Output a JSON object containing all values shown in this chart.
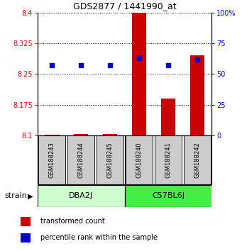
{
  "title": "GDS2877 / 1441990_at",
  "samples": [
    "GSM188243",
    "GSM188244",
    "GSM188245",
    "GSM188240",
    "GSM188241",
    "GSM188242"
  ],
  "transformed_counts": [
    8.102,
    8.103,
    8.104,
    8.4,
    8.19,
    8.295
  ],
  "percentile_ranks": [
    57,
    57,
    57,
    63,
    57,
    62
  ],
  "ylim_left": [
    8.1,
    8.4
  ],
  "ylim_right": [
    0,
    100
  ],
  "yticks_left": [
    8.1,
    8.175,
    8.25,
    8.325,
    8.4
  ],
  "yticks_right": [
    0,
    25,
    50,
    75,
    100
  ],
  "bar_color": "#cc0000",
  "dot_color": "#0000cc",
  "bar_width": 0.5,
  "sample_box_color": "#cccccc",
  "dba2j_color": "#ccffcc",
  "c57bl6j_color": "#44ee44",
  "group_edge_color": "#000000"
}
